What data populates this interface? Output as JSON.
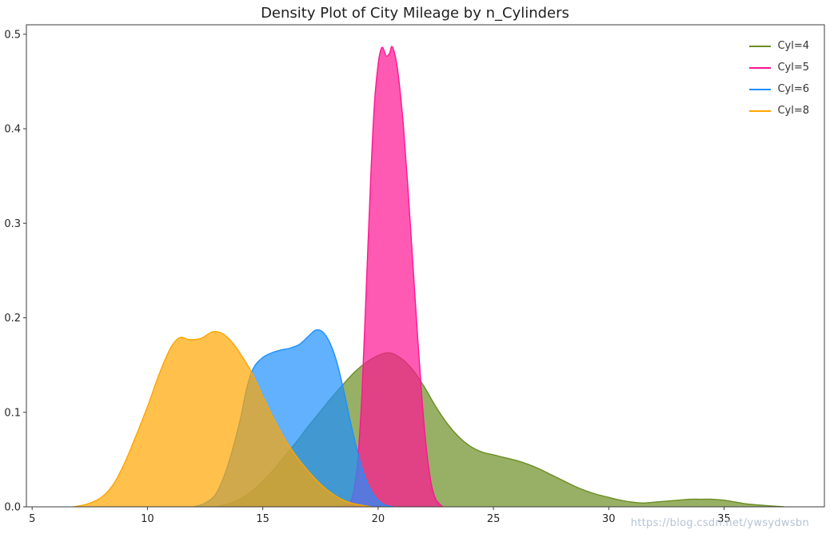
{
  "watermark": "https://blog.csdn.net/ywsydwsbn",
  "chart_data": {
    "type": "area",
    "title": "Density Plot of City Mileage by n_Cylinders",
    "xlabel": "",
    "ylabel": "",
    "xlim": [
      4.75,
      39.35
    ],
    "ylim": [
      0,
      0.51
    ],
    "x_ticks": [
      5,
      10,
      15,
      20,
      25,
      30,
      35
    ],
    "x_tick_labels": [
      "5",
      "10",
      "15",
      "20",
      "25",
      "30",
      "35"
    ],
    "y_ticks": [
      0.0,
      0.1,
      0.2,
      0.3,
      0.4,
      0.5
    ],
    "y_tick_labels": [
      "0.0",
      "0.1",
      "0.2",
      "0.3",
      "0.4",
      "0.5"
    ],
    "grid": false,
    "legend_position": "upper right",
    "fill_alpha": 0.7,
    "frame_color": "#3b3b3b",
    "tick_label_color": "#262626",
    "series": [
      {
        "name": "Cyl=4",
        "color": "#6b8e23",
        "points": [
          [
            13,
            0
          ],
          [
            13.5,
            0.003
          ],
          [
            14,
            0.008
          ],
          [
            14.5,
            0.016
          ],
          [
            15,
            0.027
          ],
          [
            15.5,
            0.04
          ],
          [
            16,
            0.055
          ],
          [
            16.5,
            0.07
          ],
          [
            17,
            0.086
          ],
          [
            17.5,
            0.101
          ],
          [
            18,
            0.116
          ],
          [
            18.5,
            0.13
          ],
          [
            19,
            0.143
          ],
          [
            19.5,
            0.153
          ],
          [
            20,
            0.16
          ],
          [
            20.5,
            0.163
          ],
          [
            21,
            0.157
          ],
          [
            21.5,
            0.145
          ],
          [
            22,
            0.127
          ],
          [
            22.5,
            0.106
          ],
          [
            23,
            0.088
          ],
          [
            23.5,
            0.074
          ],
          [
            24,
            0.064
          ],
          [
            24.5,
            0.058
          ],
          [
            25,
            0.055
          ],
          [
            25.5,
            0.052
          ],
          [
            26,
            0.049
          ],
          [
            26.5,
            0.045
          ],
          [
            27,
            0.04
          ],
          [
            27.5,
            0.034
          ],
          [
            28,
            0.028
          ],
          [
            28.5,
            0.022
          ],
          [
            29,
            0.017
          ],
          [
            29.5,
            0.013
          ],
          [
            30,
            0.01
          ],
          [
            30.5,
            0.007
          ],
          [
            31,
            0.005
          ],
          [
            31.5,
            0.004
          ],
          [
            32,
            0.005
          ],
          [
            32.5,
            0.006
          ],
          [
            33,
            0.007
          ],
          [
            33.5,
            0.008
          ],
          [
            34,
            0.008
          ],
          [
            34.5,
            0.008
          ],
          [
            35,
            0.007
          ],
          [
            35.5,
            0.005
          ],
          [
            36,
            0.003
          ],
          [
            36.5,
            0.002
          ],
          [
            37,
            0.001
          ],
          [
            37.6,
            0
          ]
        ]
      },
      {
        "name": "Cyl=5",
        "color": "#ff1493",
        "points": [
          [
            18.4,
            0
          ],
          [
            18.7,
            0.003
          ],
          [
            18.9,
            0.012
          ],
          [
            19.1,
            0.045
          ],
          [
            19.3,
            0.12
          ],
          [
            19.5,
            0.24
          ],
          [
            19.7,
            0.36
          ],
          [
            19.85,
            0.43
          ],
          [
            20,
            0.468
          ],
          [
            20.1,
            0.482
          ],
          [
            20.2,
            0.486
          ],
          [
            20.35,
            0.477
          ],
          [
            20.5,
            0.48
          ],
          [
            20.6,
            0.487
          ],
          [
            20.75,
            0.476
          ],
          [
            20.9,
            0.452
          ],
          [
            21.1,
            0.402
          ],
          [
            21.3,
            0.335
          ],
          [
            21.5,
            0.26
          ],
          [
            21.7,
            0.185
          ],
          [
            21.9,
            0.115
          ],
          [
            22.1,
            0.06
          ],
          [
            22.3,
            0.025
          ],
          [
            22.5,
            0.008
          ],
          [
            22.8,
            0
          ]
        ]
      },
      {
        "name": "Cyl=6",
        "color": "#1e90ff",
        "points": [
          [
            12,
            0
          ],
          [
            12.5,
            0.004
          ],
          [
            13,
            0.015
          ],
          [
            13.5,
            0.045
          ],
          [
            14,
            0.09
          ],
          [
            14.3,
            0.125
          ],
          [
            14.6,
            0.147
          ],
          [
            15,
            0.158
          ],
          [
            15.4,
            0.163
          ],
          [
            15.8,
            0.166
          ],
          [
            16.2,
            0.168
          ],
          [
            16.6,
            0.172
          ],
          [
            17,
            0.181
          ],
          [
            17.3,
            0.187
          ],
          [
            17.6,
            0.185
          ],
          [
            17.9,
            0.174
          ],
          [
            18.2,
            0.154
          ],
          [
            18.5,
            0.124
          ],
          [
            18.8,
            0.09
          ],
          [
            19.1,
            0.059
          ],
          [
            19.4,
            0.034
          ],
          [
            19.7,
            0.017
          ],
          [
            20,
            0.007
          ],
          [
            20.3,
            0.002
          ],
          [
            20.7,
            0
          ]
        ]
      },
      {
        "name": "Cyl=8",
        "color": "#ffa500",
        "points": [
          [
            6.8,
            0
          ],
          [
            7.4,
            0.003
          ],
          [
            8,
            0.01
          ],
          [
            8.5,
            0.023
          ],
          [
            9,
            0.046
          ],
          [
            9.5,
            0.075
          ],
          [
            10,
            0.106
          ],
          [
            10.5,
            0.14
          ],
          [
            11,
            0.168
          ],
          [
            11.4,
            0.179
          ],
          [
            11.8,
            0.177
          ],
          [
            12.3,
            0.178
          ],
          [
            12.8,
            0.185
          ],
          [
            13.2,
            0.184
          ],
          [
            13.6,
            0.176
          ],
          [
            14,
            0.163
          ],
          [
            14.5,
            0.143
          ],
          [
            15,
            0.117
          ],
          [
            15.5,
            0.092
          ],
          [
            16,
            0.07
          ],
          [
            16.5,
            0.052
          ],
          [
            17,
            0.037
          ],
          [
            17.5,
            0.024
          ],
          [
            18,
            0.014
          ],
          [
            18.5,
            0.007
          ],
          [
            19,
            0.003
          ],
          [
            19.7,
            0
          ]
        ]
      }
    ]
  }
}
